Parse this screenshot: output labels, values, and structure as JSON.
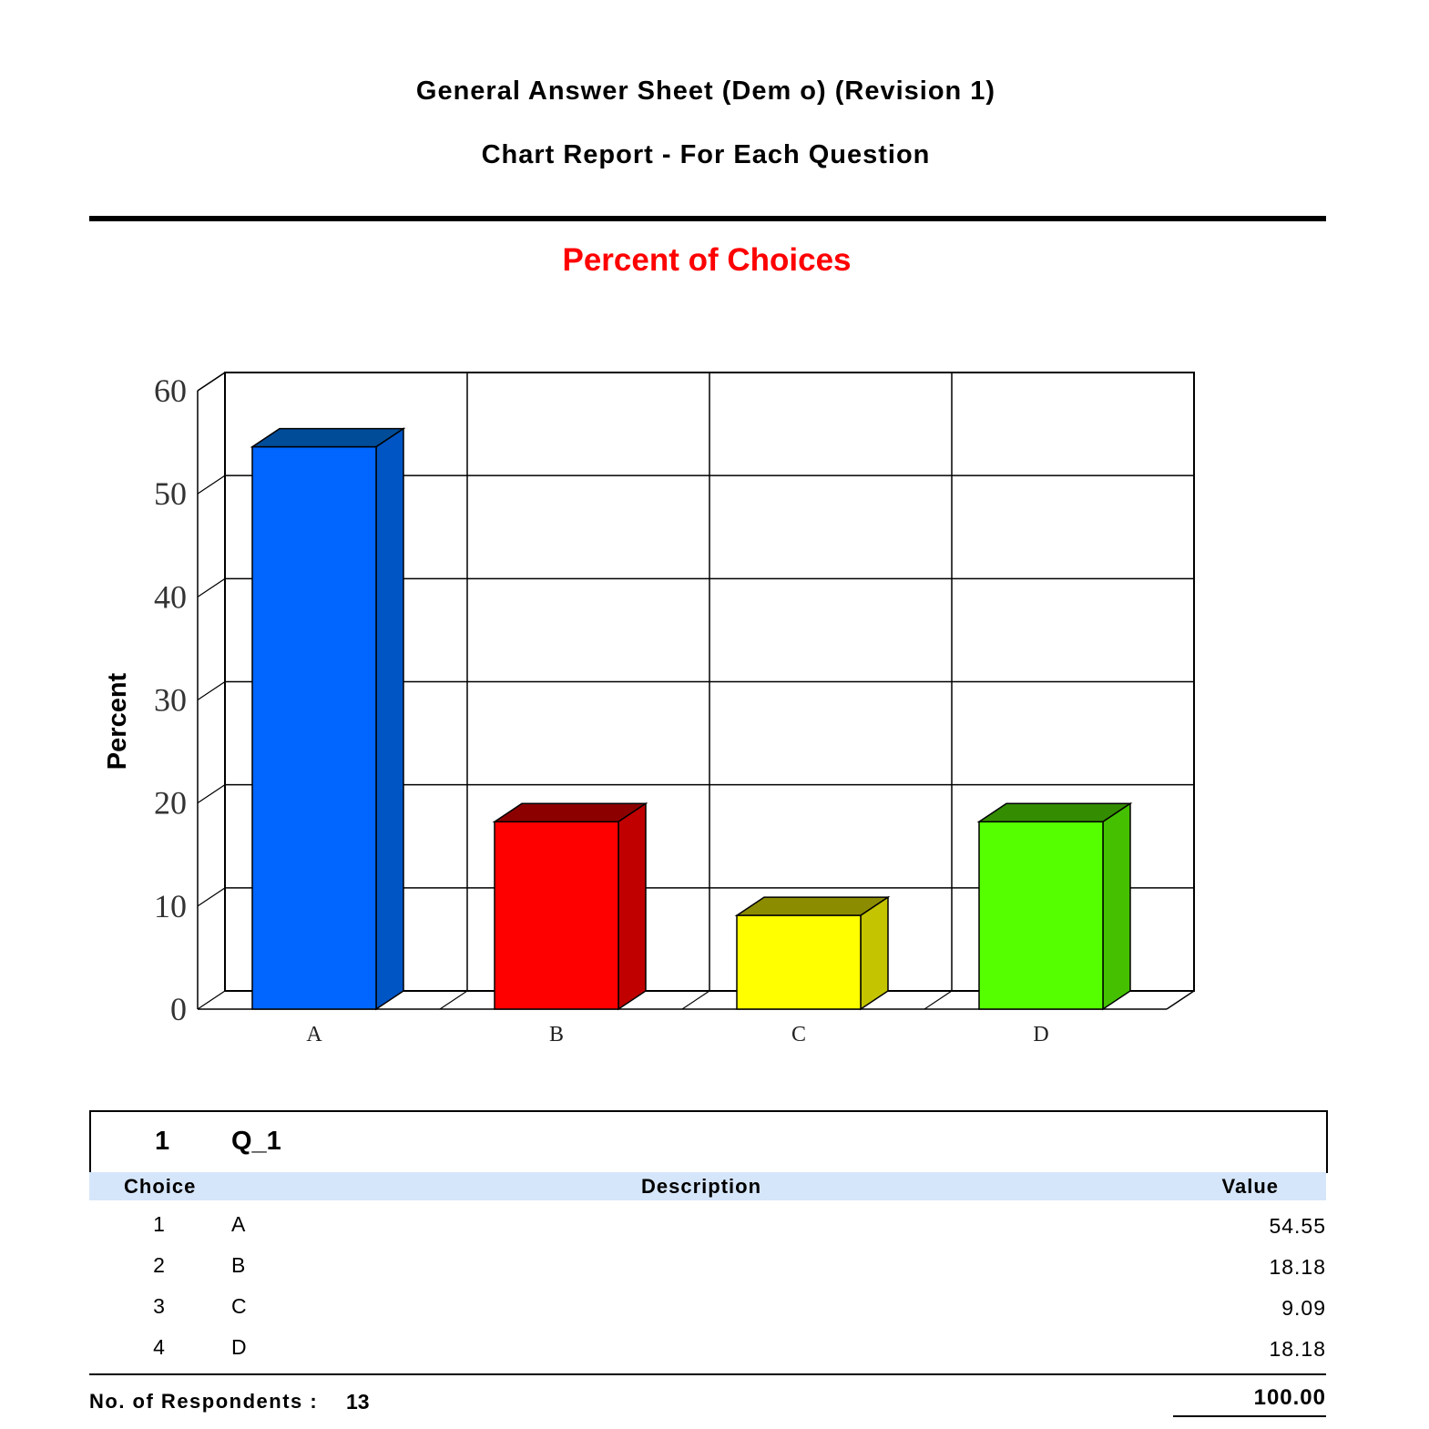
{
  "report": {
    "title": "General Answer Sheet (Dem o) (Revision 1)",
    "subtitle": "Chart Report - For Each Question"
  },
  "chart_data": {
    "type": "bar",
    "title": "Percent of Choices",
    "xlabel": "",
    "ylabel": "Percent",
    "categories": [
      "A",
      "B",
      "C",
      "D"
    ],
    "values": [
      54.55,
      18.18,
      9.09,
      18.18
    ],
    "ylim": [
      0,
      60
    ],
    "yticks": [
      0,
      10,
      20,
      30,
      40,
      50,
      60
    ],
    "grid": true,
    "three_d": true,
    "colors": {
      "front": [
        "#0066ff",
        "#ff0000",
        "#ffff00",
        "#55ff00"
      ],
      "side": [
        "#0055c4",
        "#c00000",
        "#c4c400",
        "#44c000"
      ],
      "top": [
        "#004c99",
        "#8c0000",
        "#8c8c00",
        "#348c00"
      ]
    }
  },
  "question": {
    "number": "1",
    "name": "Q_1",
    "headers": {
      "choice": "Choice",
      "description": "Description",
      "value": "Value"
    },
    "rows": [
      {
        "choice": "1",
        "description": "A",
        "value": "54.55"
      },
      {
        "choice": "2",
        "description": "B",
        "value": "18.18"
      },
      {
        "choice": "3",
        "description": "C",
        "value": "9.09"
      },
      {
        "choice": "4",
        "description": "D",
        "value": "18.18"
      }
    ],
    "respondents_label": "No. of Respondents :",
    "respondents": "13",
    "total": "100.00"
  }
}
